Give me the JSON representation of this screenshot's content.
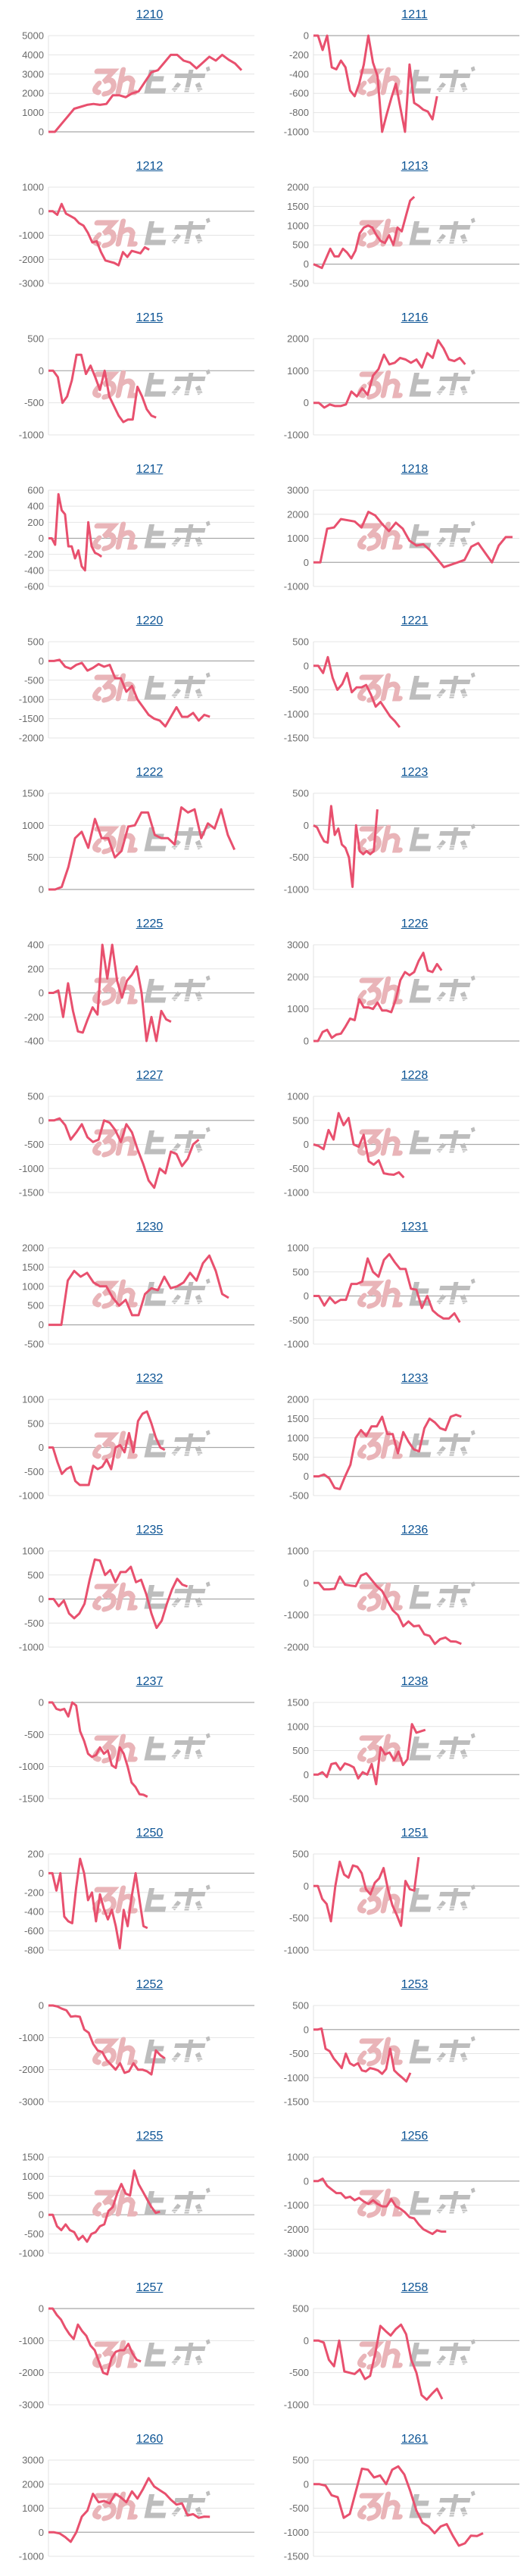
{
  "line_color": "#e8506e",
  "title_color": "#0b5394",
  "watermark": {
    "text": "みんヒポ",
    "left_color": "#e9b4b8",
    "right_color": "#bdbdbd"
  },
  "chart_data": [
    {
      "type": "line",
      "title": "1210",
      "ylim": [
        0,
        5000
      ],
      "ystep": 1000,
      "x_range": [
        0,
        32
      ],
      "values": [
        0,
        0,
        400,
        800,
        1200,
        1300,
        1400,
        1450,
        1400,
        1450,
        1900,
        1900,
        1800,
        2000,
        2100,
        2600,
        3100,
        3200,
        3600,
        4000,
        4000,
        3700,
        3600,
        3300,
        3600,
        3900,
        3700,
        4000,
        3750,
        3550,
        3200
      ]
    },
    {
      "type": "line",
      "title": "1211",
      "ylim": [
        -1000,
        0
      ],
      "ystep": 200,
      "x_range": [
        0,
        45
      ],
      "values": [
        0,
        0,
        -150,
        0,
        -330,
        -350,
        -260,
        -330,
        -570,
        -630,
        -500,
        -300,
        0,
        -280,
        -420,
        -1000,
        -820,
        -650,
        -500,
        -750,
        -1000,
        -300,
        -700,
        -730,
        -770,
        -790,
        -870,
        -630
      ]
    },
    {
      "type": "line",
      "title": "1212",
      "ylim": [
        -3000,
        1000
      ],
      "ystep": 1000,
      "x_range": [
        0,
        47
      ],
      "values": [
        0,
        0,
        -150,
        300,
        -100,
        -200,
        -300,
        -500,
        -600,
        -900,
        -1300,
        -1250,
        -1700,
        -2050,
        -2100,
        -2150,
        -2250,
        -1700,
        -1900,
        -1650,
        -1700,
        -1750,
        -1500,
        -1600
      ]
    },
    {
      "type": "line",
      "title": "1213",
      "ylim": [
        -500,
        2000
      ],
      "ystep": 500,
      "x_range": [
        0,
        49
      ],
      "values": [
        0,
        -50,
        -100,
        150,
        400,
        200,
        200,
        400,
        300,
        150,
        350,
        800,
        950,
        1000,
        950,
        750,
        600,
        550,
        750,
        500,
        950,
        850,
        1250,
        1650,
        1750
      ]
    },
    {
      "type": "line",
      "title": "1215",
      "ylim": [
        -1000,
        500
      ],
      "ystep": 500,
      "x_range": [
        0,
        44
      ],
      "values": [
        0,
        0,
        -100,
        -500,
        -400,
        -150,
        250,
        250,
        -50,
        80,
        -100,
        -300,
        0,
        -400,
        -550,
        -700,
        -800,
        -760,
        -760,
        -250,
        -400,
        -600,
        -700,
        -730
      ]
    },
    {
      "type": "line",
      "title": "1216",
      "ylim": [
        -1000,
        2000
      ],
      "ystep": 1000,
      "x_range": [
        0,
        38
      ],
      "values": [
        0,
        0,
        -150,
        -50,
        -100,
        -100,
        -50,
        350,
        200,
        450,
        250,
        850,
        1050,
        1500,
        1200,
        1250,
        1400,
        1350,
        1250,
        1350,
        1100,
        1550,
        1400,
        1950,
        1700,
        1350,
        1300,
        1400,
        1200
      ]
    },
    {
      "type": "line",
      "title": "1217",
      "ylim": [
        -600,
        600
      ],
      "ystep": 200,
      "x_range": [
        0,
        62
      ],
      "values": [
        0,
        0,
        -80,
        550,
        350,
        300,
        -100,
        -100,
        -250,
        -150,
        -350,
        -400,
        200,
        -100,
        -180,
        -200,
        -230
      ]
    },
    {
      "type": "line",
      "title": "1218",
      "ylim": [
        -1000,
        3000
      ],
      "ystep": 1000,
      "x_range": [
        0,
        30
      ],
      "values": [
        0,
        0,
        1400,
        1450,
        1800,
        1750,
        1700,
        1450,
        2100,
        1950,
        1600,
        1300,
        1650,
        1400,
        900,
        700,
        750,
        500,
        150,
        -200,
        -100,
        0,
        100,
        650,
        800,
        400,
        0,
        700,
        1050,
        1050
      ]
    },
    {
      "type": "line",
      "title": "1220",
      "ylim": [
        -2000,
        500
      ],
      "ystep": 500,
      "x_range": [
        0,
        37
      ],
      "values": [
        0,
        0,
        30,
        -150,
        -200,
        -100,
        -50,
        -250,
        -180,
        -80,
        -150,
        -100,
        -450,
        -450,
        -800,
        -650,
        -1000,
        -1200,
        -1400,
        -1500,
        -1550,
        -1700,
        -1450,
        -1200,
        -1450,
        -1450,
        -1350,
        -1550,
        -1400,
        -1450
      ]
    },
    {
      "type": "line",
      "title": "1221",
      "ylim": [
        -1500,
        500
      ],
      "ystep": 500,
      "x_range": [
        0,
        43
      ],
      "values": [
        0,
        0,
        -150,
        180,
        -250,
        -500,
        -380,
        -150,
        -550,
        -450,
        -450,
        -400,
        -600,
        -850,
        -750,
        -900,
        -1050,
        -1150,
        -1280
      ]
    },
    {
      "type": "line",
      "title": "1222",
      "ylim": [
        0,
        1500
      ],
      "ystep": 500,
      "x_range": [
        0,
        31
      ],
      "values": [
        0,
        0,
        40,
        350,
        800,
        900,
        650,
        1100,
        800,
        800,
        500,
        600,
        980,
        1000,
        1200,
        1200,
        850,
        800,
        800,
        700,
        1280,
        1200,
        1250,
        800,
        1030,
        950,
        1250,
        850,
        620
      ]
    },
    {
      "type": "line",
      "title": "1223",
      "ylim": [
        -1000,
        500
      ],
      "ystep": 500,
      "x_range": [
        0,
        58
      ],
      "values": [
        0,
        -30,
        -150,
        -250,
        -270,
        300,
        -150,
        -50,
        -300,
        -350,
        -500,
        -960,
        0,
        -400,
        -450,
        -400,
        -450,
        -400,
        250
      ]
    },
    {
      "type": "line",
      "title": "1225",
      "ylim": [
        -400,
        400
      ],
      "ystep": 200,
      "x_range": [
        0,
        42
      ],
      "values": [
        0,
        0,
        20,
        -200,
        80,
        -150,
        -320,
        -330,
        -220,
        -120,
        -180,
        400,
        120,
        400,
        100,
        -40,
        100,
        150,
        220,
        0,
        -400,
        -200,
        -400,
        -150,
        -220,
        -240
      ]
    },
    {
      "type": "line",
      "title": "1226",
      "ylim": [
        0,
        3000
      ],
      "ystep": 1000,
      "x_range": [
        0,
        45
      ],
      "values": [
        0,
        0,
        280,
        350,
        100,
        200,
        230,
        450,
        700,
        650,
        1300,
        1050,
        1050,
        1000,
        1200,
        950,
        950,
        900,
        1300,
        1900,
        2150,
        2050,
        2150,
        2500,
        2750,
        2200,
        2150,
        2400,
        2200
      ]
    },
    {
      "type": "line",
      "title": "1227",
      "ylim": [
        -1500,
        500
      ],
      "ystep": 500,
      "x_range": [
        0,
        37
      ],
      "values": [
        0,
        0,
        40,
        -100,
        -400,
        -250,
        -80,
        -350,
        -450,
        -400,
        0,
        -50,
        -200,
        -450,
        -80,
        -250,
        -600,
        -900,
        -1250,
        -1400,
        -1000,
        -1100,
        -650,
        -700,
        -950,
        -800,
        -500,
        -400
      ]
    },
    {
      "type": "line",
      "title": "1228",
      "ylim": [
        -1000,
        1000
      ],
      "ystep": 500,
      "x_range": [
        0,
        41
      ],
      "values": [
        0,
        -30,
        -100,
        300,
        100,
        650,
        400,
        550,
        0,
        -50,
        200,
        -350,
        -420,
        -330,
        -600,
        -620,
        -630,
        -580,
        -690
      ]
    },
    {
      "type": "line",
      "title": "1230",
      "ylim": [
        -500,
        2000
      ],
      "ystep": 500,
      "x_range": [
        0,
        32
      ],
      "values": [
        0,
        0,
        0,
        1150,
        1400,
        1250,
        1350,
        1100,
        1000,
        1000,
        700,
        500,
        650,
        250,
        250,
        800,
        950,
        900,
        1250,
        950,
        1000,
        1100,
        1350,
        1150,
        1600,
        1800,
        1400,
        800,
        700
      ]
    },
    {
      "type": "line",
      "title": "1231",
      "ylim": [
        -1000,
        1000
      ],
      "ystep": 500,
      "x_range": [
        0,
        38
      ],
      "values": [
        0,
        0,
        -200,
        -30,
        -150,
        -80,
        -80,
        250,
        250,
        300,
        780,
        500,
        400,
        750,
        870,
        700,
        560,
        560,
        150,
        130,
        -250,
        0,
        -300,
        -400,
        -470,
        -470,
        -360,
        -550
      ]
    },
    {
      "type": "line",
      "title": "1232",
      "ylim": [
        -1000,
        1000
      ],
      "ystep": 500,
      "x_range": [
        0,
        46
      ],
      "values": [
        0,
        0,
        -300,
        -550,
        -450,
        -400,
        -700,
        -780,
        -780,
        -780,
        -380,
        -450,
        -400,
        -250,
        -450,
        0,
        50,
        -100,
        300,
        -100,
        550,
        700,
        750,
        500,
        200,
        0,
        -50
      ]
    },
    {
      "type": "line",
      "title": "1233",
      "ylim": [
        -500,
        2000
      ],
      "ystep": 500,
      "x_range": [
        0,
        39
      ],
      "values": [
        0,
        0,
        50,
        -50,
        -300,
        -330,
        0,
        300,
        1000,
        1200,
        1050,
        1300,
        1300,
        1550,
        1100,
        1100,
        600,
        1150,
        900,
        700,
        650,
        1250,
        1500,
        1400,
        1250,
        1200,
        1550,
        1600,
        1550
      ]
    },
    {
      "type": "line",
      "title": "1235",
      "ylim": [
        -1000,
        1000
      ],
      "ystep": 500,
      "x_range": [
        0,
        40
      ],
      "values": [
        0,
        0,
        -150,
        -30,
        -300,
        -400,
        -300,
        -100,
        400,
        820,
        800,
        500,
        600,
        350,
        560,
        560,
        670,
        350,
        400,
        100,
        -300,
        -600,
        -450,
        -100,
        200,
        420,
        300,
        260
      ]
    },
    {
      "type": "line",
      "title": "1236",
      "ylim": [
        -2000,
        1000
      ],
      "ystep": 1000,
      "x_range": [
        0,
        39
      ],
      "values": [
        0,
        0,
        -200,
        -200,
        -180,
        200,
        -50,
        -80,
        -100,
        230,
        300,
        100,
        -100,
        -250,
        -550,
        -850,
        -1000,
        -1350,
        -1200,
        -1350,
        -1330,
        -1600,
        -1650,
        -1900,
        -1750,
        -1700,
        -1820,
        -1830,
        -1900
      ]
    },
    {
      "type": "line",
      "title": "1237",
      "ylim": [
        -1500,
        0
      ],
      "ystep": 500,
      "x_range": [
        0,
        52
      ],
      "values": [
        0,
        0,
        -100,
        -120,
        -100,
        -220,
        0,
        -50,
        -450,
        -600,
        -800,
        -850,
        -820,
        -700,
        -800,
        -750,
        -980,
        -1020,
        -700,
        -800,
        -1000,
        -1250,
        -1320,
        -1430,
        -1440,
        -1470
      ]
    },
    {
      "type": "line",
      "title": "1238",
      "ylim": [
        -500,
        1500
      ],
      "ystep": 500,
      "x_range": [
        0,
        46
      ],
      "values": [
        0,
        0,
        50,
        -50,
        220,
        240,
        100,
        230,
        200,
        150,
        -80,
        50,
        0,
        220,
        -200,
        570,
        420,
        460,
        300,
        480,
        200,
        320,
        1050,
        870,
        900,
        930
      ]
    },
    {
      "type": "line",
      "title": "1250",
      "ylim": [
        -800,
        200
      ],
      "ystep": 200,
      "x_range": [
        0,
        52
      ],
      "values": [
        0,
        0,
        -180,
        0,
        -450,
        -500,
        -520,
        -150,
        150,
        0,
        -280,
        -200,
        -500,
        -220,
        -370,
        -480,
        -380,
        -550,
        -780,
        -380,
        -550,
        -250,
        0,
        -280,
        -550,
        -570
      ]
    },
    {
      "type": "line",
      "title": "1251",
      "ylim": [
        -1000,
        500
      ],
      "ystep": 500,
      "x_range": [
        0,
        47
      ],
      "values": [
        0,
        0,
        -200,
        -280,
        -550,
        0,
        380,
        180,
        130,
        320,
        300,
        200,
        -50,
        -130,
        50,
        120,
        280,
        -50,
        -300,
        -450,
        -620,
        80,
        -50,
        -70,
        450
      ]
    },
    {
      "type": "line",
      "title": "1252",
      "ylim": [
        -3000,
        0
      ],
      "ystep": 1000,
      "x_range": [
        0,
        46
      ],
      "values": [
        0,
        0,
        -30,
        -100,
        -150,
        -350,
        -330,
        -350,
        -750,
        -850,
        -1200,
        -1400,
        -1450,
        -1700,
        -1850,
        -2000,
        -1800,
        -2100,
        -2050,
        -1800,
        -2000,
        -2000,
        -2050,
        -2150,
        -1400,
        -1550,
        -1650
      ]
    },
    {
      "type": "line",
      "title": "1253",
      "ylim": [
        -1500,
        500
      ],
      "ystep": 500,
      "x_range": [
        0,
        51
      ],
      "values": [
        0,
        0,
        20,
        -400,
        -450,
        -600,
        -700,
        -800,
        -500,
        -700,
        -750,
        -700,
        -850,
        -870,
        -800,
        -820,
        -850,
        -920,
        -820,
        -400,
        -850,
        -930,
        -1000,
        -1080,
        -900
      ]
    },
    {
      "type": "line",
      "title": "1255",
      "ylim": [
        -1000,
        1500
      ],
      "ystep": 500,
      "x_range": [
        0,
        48
      ],
      "values": [
        0,
        0,
        -300,
        -400,
        -250,
        -400,
        -450,
        -650,
        -550,
        -700,
        -500,
        -450,
        -300,
        -250,
        100,
        200,
        550,
        800,
        550,
        500,
        1150,
        800,
        600,
        400,
        200,
        50,
        80
      ]
    },
    {
      "type": "line",
      "title": "1256",
      "ylim": [
        -3000,
        1000
      ],
      "ystep": 1000,
      "x_range": [
        0,
        45
      ],
      "values": [
        0,
        0,
        100,
        -200,
        -350,
        -500,
        -500,
        -700,
        -650,
        -800,
        -700,
        -850,
        -950,
        -800,
        -950,
        -1050,
        -1050,
        -750,
        -1050,
        -1150,
        -1300,
        -1500,
        -1550,
        -1800,
        -2000,
        -2100,
        -2200,
        -2050,
        -2100,
        -2100
      ]
    },
    {
      "type": "line",
      "title": "1257",
      "ylim": [
        -3000,
        0
      ],
      "ystep": 1000,
      "x_range": [
        0,
        49
      ],
      "values": [
        0,
        0,
        -200,
        -350,
        -600,
        -800,
        -950,
        -500,
        -700,
        -850,
        -1150,
        -1300,
        -1650,
        -2000,
        -2050,
        -1550,
        -1350,
        -1300,
        -1300,
        -1100,
        -1400,
        -1600,
        -1650
      ]
    },
    {
      "type": "line",
      "title": "1258",
      "ylim": [
        -1000,
        500
      ],
      "ystep": 500,
      "x_range": [
        0,
        40
      ],
      "values": [
        0,
        0,
        -30,
        -300,
        -400,
        0,
        -480,
        -500,
        -520,
        -450,
        -600,
        -550,
        -200,
        230,
        150,
        80,
        180,
        250,
        100,
        -300,
        -500,
        -850,
        -920,
        -830,
        -750,
        -910
      ]
    },
    {
      "type": "line",
      "title": "1260",
      "ylim": [
        -1000,
        3000
      ],
      "ystep": 1000,
      "x_range": [
        0,
        37
      ],
      "values": [
        0,
        0,
        -50,
        -200,
        -400,
        0,
        650,
        900,
        1600,
        1250,
        1300,
        1200,
        1600,
        1450,
        1250,
        1700,
        1400,
        1800,
        2250,
        1900,
        1750,
        1600,
        1350,
        1150,
        1200,
        700,
        750,
        600,
        650,
        640
      ]
    },
    {
      "type": "line",
      "title": "1261",
      "ylim": [
        -1500,
        500
      ],
      "ystep": 500,
      "x_range": [
        0,
        34
      ],
      "values": [
        0,
        0,
        -30,
        -230,
        -270,
        -700,
        -620,
        -150,
        320,
        300,
        140,
        180,
        0,
        300,
        370,
        200,
        -150,
        -550,
        -800,
        -880,
        -1020,
        -880,
        -830,
        -1070,
        -1280,
        -1230,
        -1070,
        -1080,
        -1020
      ]
    }
  ]
}
